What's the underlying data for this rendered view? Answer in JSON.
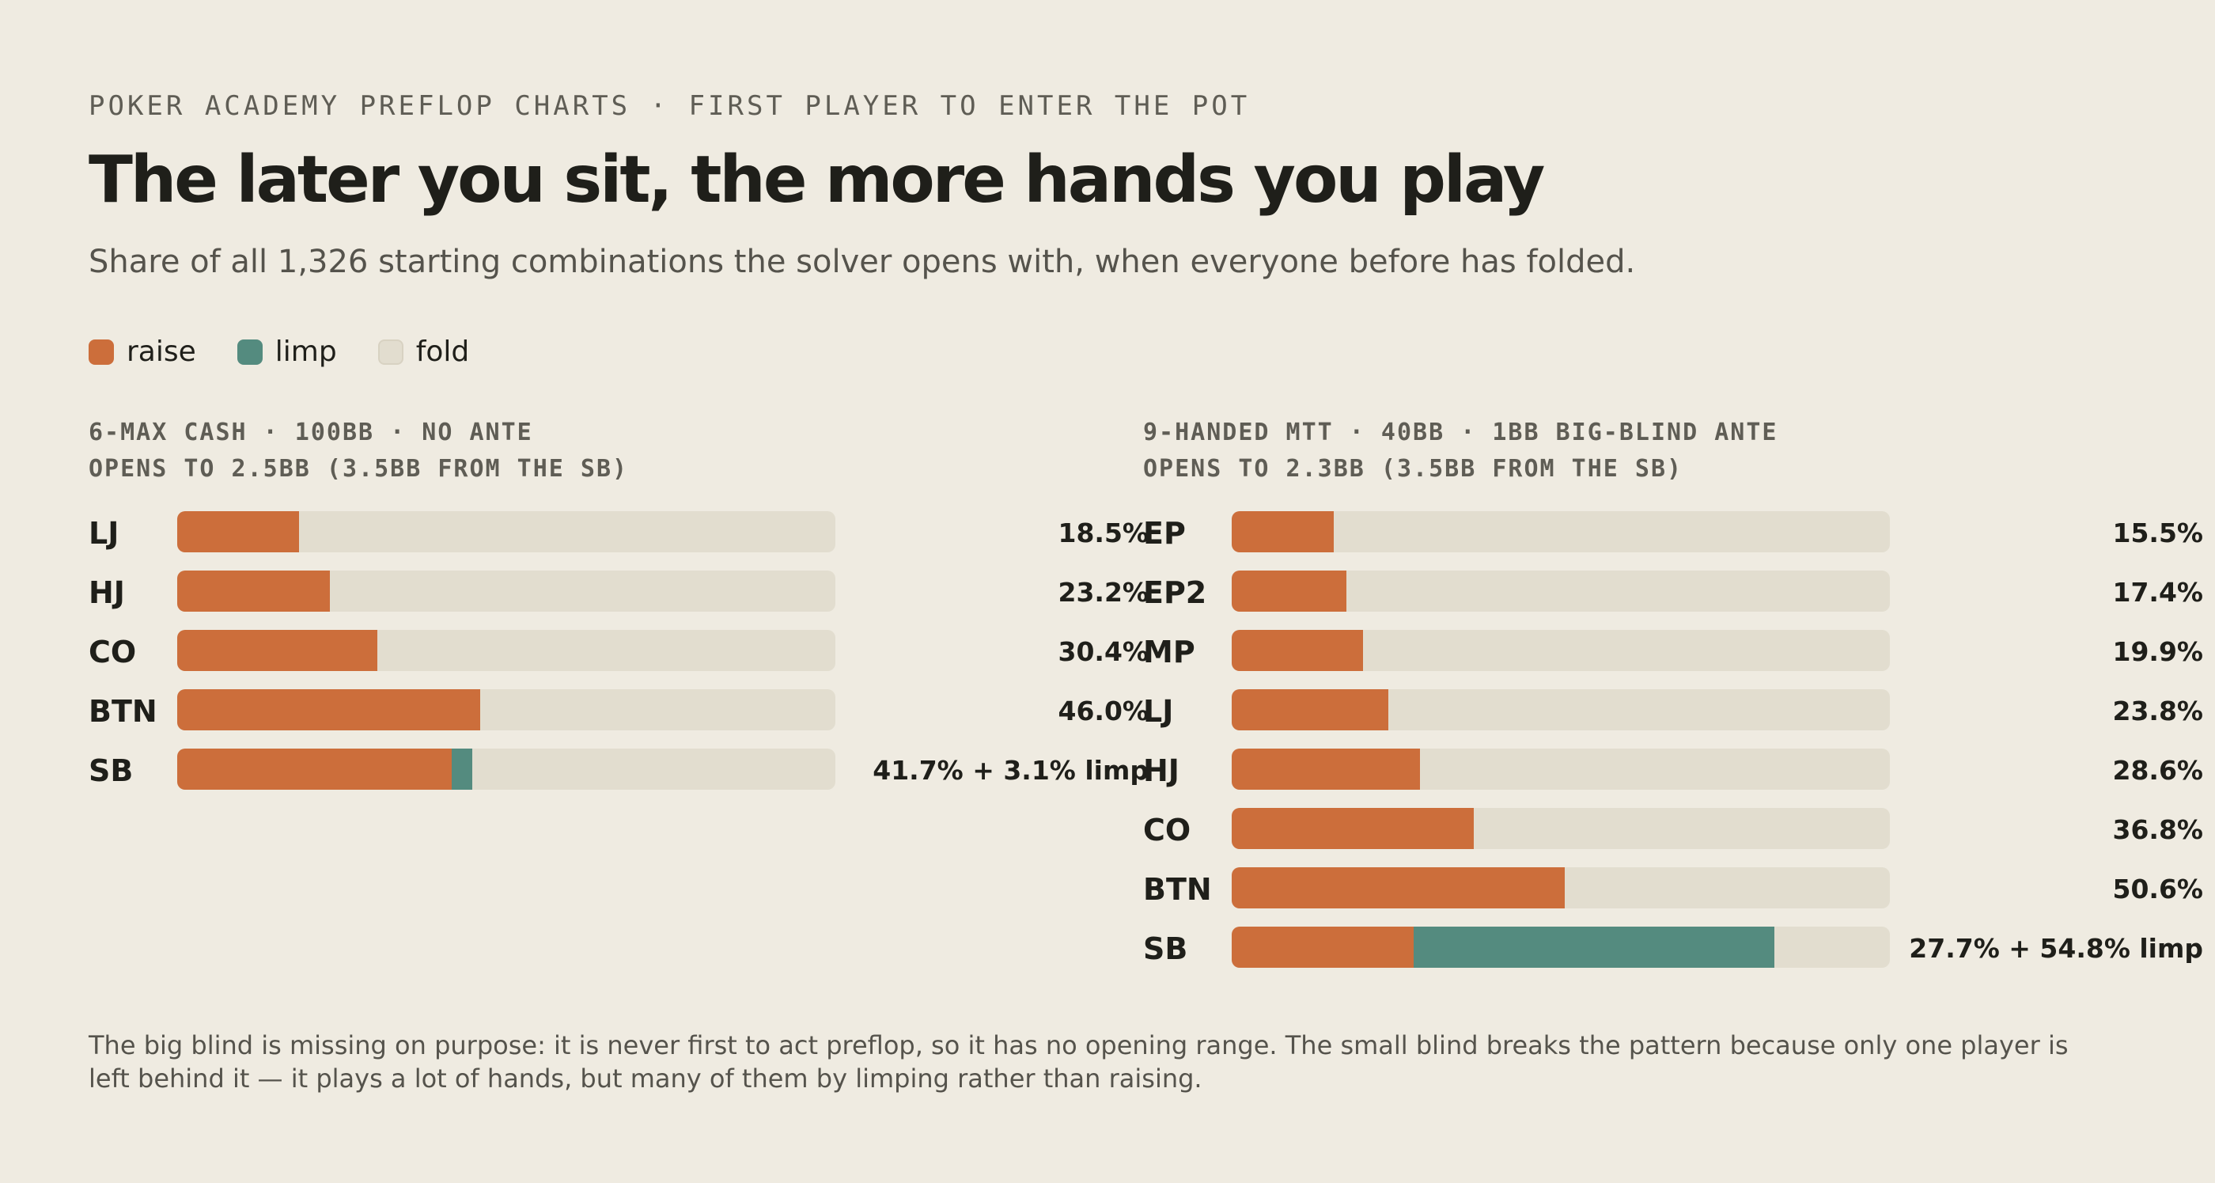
{
  "kicker": "POKER ACADEMY PREFLOP CHARTS · FIRST PLAYER TO ENTER THE POT",
  "title": "The later you sit, the more hands you play",
  "subtitle": "Share of all 1,326 starting combinations the solver opens with, when everyone before has folded.",
  "legend": [
    {
      "label": "raise",
      "color": "#cc6e3b"
    },
    {
      "label": "limp",
      "color": "#548b7f"
    },
    {
      "label": "fold",
      "color": "#e2ddcf"
    }
  ],
  "footnote": "The big blind is missing on purpose: it is never first to act preflop, so it has no opening range. The small blind breaks the pattern because only one player is left behind it — it plays a lot of hands, but many of them by limping rather than raising.",
  "chart_data": [
    {
      "type": "bar",
      "orientation": "horizontal",
      "stacked": true,
      "title": "6-MAX CASH · 100BB · NO ANTE",
      "subtitle": "OPENS TO 2.5BB (3.5BB FROM THE SB)",
      "xlim": [
        0,
        100
      ],
      "unit": "%",
      "categories": [
        "LJ",
        "HJ",
        "CO",
        "BTN",
        "SB"
      ],
      "series": [
        {
          "name": "raise",
          "color": "#cc6e3b",
          "values": [
            18.5,
            23.2,
            30.4,
            46.0,
            41.7
          ]
        },
        {
          "name": "limp",
          "color": "#548b7f",
          "values": [
            0,
            0,
            0,
            0,
            3.1
          ]
        }
      ],
      "value_labels": [
        "18.5%",
        "23.2%",
        "30.4%",
        "46.0%",
        "41.7% + 3.1% limp"
      ]
    },
    {
      "type": "bar",
      "orientation": "horizontal",
      "stacked": true,
      "title": "9-HANDED MTT · 40BB · 1BB BIG-BLIND ANTE",
      "subtitle": "OPENS TO 2.3BB (3.5BB FROM THE SB)",
      "xlim": [
        0,
        100
      ],
      "unit": "%",
      "categories": [
        "EP",
        "EP2",
        "MP",
        "LJ",
        "HJ",
        "CO",
        "BTN",
        "SB"
      ],
      "series": [
        {
          "name": "raise",
          "color": "#cc6e3b",
          "values": [
            15.5,
            17.4,
            19.9,
            23.8,
            28.6,
            36.8,
            50.6,
            27.7
          ]
        },
        {
          "name": "limp",
          "color": "#548b7f",
          "values": [
            0,
            0,
            0,
            0,
            0,
            0,
            0,
            54.8
          ]
        }
      ],
      "value_labels": [
        "15.5%",
        "17.4%",
        "19.9%",
        "23.8%",
        "28.6%",
        "36.8%",
        "50.6%",
        "27.7% + 54.8% limp"
      ]
    }
  ]
}
